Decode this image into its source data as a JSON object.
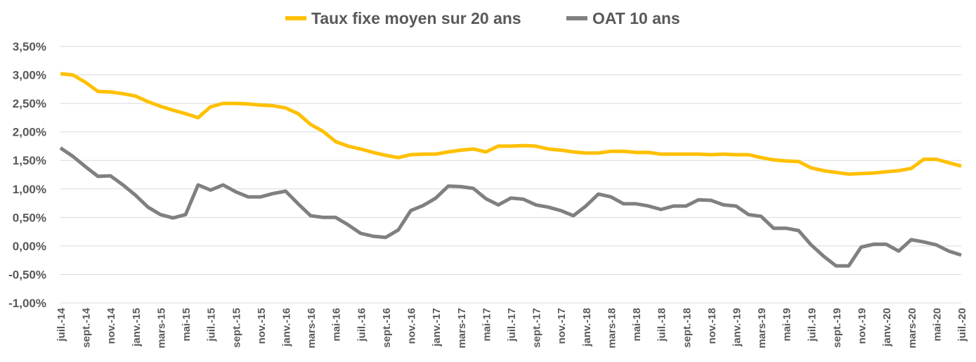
{
  "chart_data": {
    "type": "line",
    "title": "",
    "xlabel": "",
    "ylabel": "",
    "ylim": [
      -1.0,
      3.5
    ],
    "y_ticks": [
      3.5,
      3.0,
      2.5,
      2.0,
      1.5,
      1.0,
      0.5,
      0.0,
      -0.5,
      -1.0
    ],
    "y_tick_labels": [
      "3,50%",
      "3,00%",
      "2,50%",
      "2,00%",
      "1,50%",
      "1,00%",
      "0,50%",
      "0,00%",
      "-0,50%",
      "-1,00%"
    ],
    "grid": true,
    "legend_position": "top",
    "x_range": [
      "juil.-14",
      "juil.-20"
    ],
    "x_tick_labels": [
      "juil.-14",
      "sept.-14",
      "nov.-14",
      "janv.-15",
      "mars-15",
      "mai-15",
      "juil.-15",
      "sept.-15",
      "nov.-15",
      "janv.-16",
      "mars-16",
      "mai-16",
      "juil.-16",
      "sept.-16",
      "nov.-16",
      "janv.-17",
      "mars-17",
      "mai-17",
      "juil.-17",
      "sept.-17",
      "nov.-17",
      "janv.-18",
      "mars-18",
      "mai-18",
      "juil.-18",
      "sept.-18",
      "nov.-18",
      "janv.-19",
      "mars-19",
      "mai-19",
      "juil.-19",
      "sept.-19",
      "nov.-19",
      "janv.-20",
      "mars-20",
      "mai-20",
      "juil.-20"
    ],
    "series": [
      {
        "name": "Taux fixe moyen sur 20 ans",
        "color": "#FFC000",
        "values": [
          3.02,
          3.0,
          2.87,
          2.71,
          2.7,
          2.67,
          2.63,
          2.53,
          2.45,
          2.38,
          2.32,
          2.25,
          2.44,
          2.5,
          2.5,
          2.49,
          2.47,
          2.46,
          2.42,
          2.32,
          2.13,
          2.01,
          1.83,
          1.75,
          1.7,
          1.64,
          1.59,
          1.55,
          1.6,
          1.61,
          1.61,
          1.65,
          1.68,
          1.7,
          1.65,
          1.75,
          1.75,
          1.76,
          1.75,
          1.7,
          1.68,
          1.65,
          1.63,
          1.63,
          1.66,
          1.66,
          1.64,
          1.64,
          1.61,
          1.61,
          1.61,
          1.61,
          1.6,
          1.61,
          1.6,
          1.6,
          1.55,
          1.51,
          1.49,
          1.48,
          1.37,
          1.32,
          1.29,
          1.26,
          1.27,
          1.28,
          1.3,
          1.32,
          1.36,
          1.52,
          1.52,
          1.46,
          1.4
        ]
      },
      {
        "name": "OAT 10 ans",
        "color": "#808080",
        "values": [
          1.72,
          1.57,
          1.39,
          1.22,
          1.23,
          1.07,
          0.89,
          0.68,
          0.55,
          0.49,
          0.55,
          1.07,
          0.98,
          1.07,
          0.95,
          0.86,
          0.86,
          0.92,
          0.96,
          0.74,
          0.53,
          0.5,
          0.5,
          0.37,
          0.22,
          0.17,
          0.15,
          0.28,
          0.62,
          0.71,
          0.84,
          1.05,
          1.04,
          1.01,
          0.83,
          0.72,
          0.84,
          0.82,
          0.72,
          0.68,
          0.62,
          0.53,
          0.7,
          0.91,
          0.86,
          0.74,
          0.74,
          0.7,
          0.64,
          0.7,
          0.7,
          0.81,
          0.8,
          0.72,
          0.7,
          0.55,
          0.52,
          0.31,
          0.31,
          0.27,
          0.02,
          -0.18,
          -0.35,
          -0.35,
          -0.02,
          0.03,
          0.03,
          -0.09,
          0.11,
          0.07,
          0.02,
          -0.09,
          -0.16
        ]
      }
    ]
  }
}
